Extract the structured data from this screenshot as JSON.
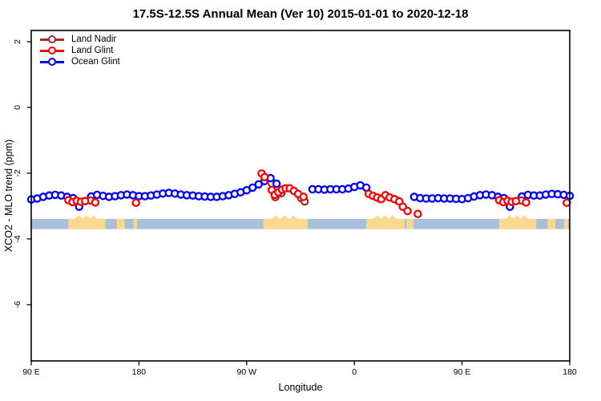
{
  "chart": {
    "title": "17.5S-12.5S Annual Mean (Ver 10)   2015-01-01 to 2020-12-18",
    "xlabel": "Longitude",
    "ylabel": "XCO2 - MLO trend (ppm)"
  },
  "chart_data": {
    "type": "scatter",
    "title": "17.5S-12.5S Annual Mean (Ver 10)   2015-01-01 to 2020-12-18",
    "xlabel": "Longitude",
    "ylabel": "XCO2 - MLO trend (ppm)",
    "x_axis": {
      "range": [
        90,
        540
      ],
      "note": "longitude axis wraps eastward: 90E -> 180 -> 90W -> 0 -> 90E -> 180",
      "ticks": [
        {
          "pos": 90,
          "label": "90 E"
        },
        {
          "pos": 180,
          "label": "180"
        },
        {
          "pos": 270,
          "label": "90 W"
        },
        {
          "pos": 360,
          "label": "0"
        },
        {
          "pos": 450,
          "label": "90 E"
        },
        {
          "pos": 540,
          "label": "180"
        }
      ]
    },
    "y_axis": {
      "range": [
        -7.71,
        2.34
      ],
      "ticks": [
        2,
        0,
        -2,
        -4,
        -6
      ],
      "grid": false
    },
    "legend_position": "top-left",
    "series": [
      {
        "name": "Land Nadir",
        "color": "#A52A2A",
        "clusters": [
          [
            [
              139.5,
              -2.83
            ]
          ],
          [
            [
              294.0,
              -2.73
            ],
            [
              299.0,
              -2.61
            ]
          ],
          [
            [
              315.5,
              -2.76
            ],
            [
              318.5,
              -2.86
            ]
          ],
          [
            [
              381.0,
              -2.77
            ]
          ],
          [
            [
              396.5,
              -2.84
            ]
          ],
          [
            [
              499.5,
              -2.83
            ]
          ]
        ]
      },
      {
        "name": "Land Glint",
        "color": "#FF0000",
        "clusters": [
          [
            [
              121.0,
              -2.82
            ],
            [
              124.5,
              -2.88
            ],
            [
              128.0,
              -2.84
            ],
            [
              131.5,
              -2.87
            ],
            [
              135.0,
              -2.85
            ]
          ],
          [
            [
              143.5,
              -2.89
            ]
          ],
          [
            [
              177.5,
              -2.9
            ]
          ],
          [
            [
              282.5,
              -2.01
            ],
            [
              285.0,
              -2.12
            ],
            [
              291.0,
              -2.51
            ],
            [
              293.5,
              -2.66
            ],
            [
              296.5,
              -2.58
            ],
            [
              299.5,
              -2.5
            ],
            [
              302.5,
              -2.46
            ],
            [
              306.0,
              -2.46
            ],
            [
              309.5,
              -2.54
            ],
            [
              313.0,
              -2.63
            ],
            [
              317.5,
              -2.72
            ]
          ],
          [
            [
              372.0,
              -2.63
            ],
            [
              375.5,
              -2.69
            ],
            [
              379.0,
              -2.74
            ],
            [
              382.5,
              -2.79
            ],
            [
              386.0,
              -2.67
            ],
            [
              389.5,
              -2.74
            ],
            [
              393.5,
              -2.79
            ],
            [
              397.5,
              -2.86
            ],
            [
              400.5,
              -3.02
            ],
            [
              404.5,
              -3.15
            ]
          ],
          [
            [
              413.0,
              -3.24
            ]
          ],
          [
            [
              481.0,
              -2.82
            ],
            [
              484.5,
              -2.88
            ],
            [
              488.0,
              -2.84
            ],
            [
              491.5,
              -2.87
            ],
            [
              495.0,
              -2.85
            ]
          ],
          [
            [
              503.5,
              -2.89
            ]
          ],
          [
            [
              537.5,
              -2.9
            ]
          ]
        ]
      },
      {
        "name": "Ocean Glint",
        "color": "#0000FF",
        "clusters": [
          [
            [
              90,
              -2.8
            ],
            [
              95,
              -2.77
            ],
            [
              100,
              -2.72
            ],
            [
              105,
              -2.68
            ],
            [
              110,
              -2.66
            ],
            [
              115,
              -2.68
            ],
            [
              120,
              -2.72
            ],
            [
              125,
              -2.76
            ],
            [
              130,
              -3.02
            ],
            [
              135,
              -2.85
            ],
            [
              140,
              -2.71
            ],
            [
              145,
              -2.66
            ],
            [
              150,
              -2.69
            ],
            [
              155,
              -2.72
            ],
            [
              160,
              -2.7
            ],
            [
              165,
              -2.67
            ],
            [
              170,
              -2.65
            ],
            [
              175,
              -2.67
            ],
            [
              180,
              -2.7
            ],
            [
              185,
              -2.7
            ],
            [
              190,
              -2.68
            ],
            [
              195,
              -2.65
            ],
            [
              200,
              -2.62
            ],
            [
              205,
              -2.6
            ],
            [
              210,
              -2.62
            ],
            [
              215,
              -2.65
            ],
            [
              220,
              -2.67
            ],
            [
              225,
              -2.68
            ],
            [
              230,
              -2.7
            ],
            [
              235,
              -2.71
            ],
            [
              240,
              -2.72
            ],
            [
              245,
              -2.72
            ],
            [
              250,
              -2.7
            ],
            [
              255,
              -2.67
            ],
            [
              260,
              -2.63
            ],
            [
              265,
              -2.58
            ],
            [
              270,
              -2.52
            ],
            [
              275,
              -2.44
            ],
            [
              280,
              -2.34
            ],
            [
              285,
              -2.24
            ],
            [
              290,
              -2.15
            ],
            [
              295,
              -2.32
            ]
          ],
          [
            [
              325,
              -2.49
            ],
            [
              330,
              -2.49
            ],
            [
              335,
              -2.5
            ],
            [
              340,
              -2.49
            ],
            [
              345,
              -2.49
            ],
            [
              350,
              -2.49
            ],
            [
              355,
              -2.47
            ],
            [
              360,
              -2.42
            ],
            [
              365,
              -2.37
            ],
            [
              370,
              -2.44
            ]
          ],
          [
            [
              410,
              -2.72
            ],
            [
              415,
              -2.76
            ],
            [
              420,
              -2.77
            ],
            [
              425,
              -2.77
            ],
            [
              430,
              -2.76
            ],
            [
              435,
              -2.77
            ],
            [
              440,
              -2.77
            ],
            [
              445,
              -2.78
            ],
            [
              450,
              -2.79
            ],
            [
              455,
              -2.76
            ],
            [
              460,
              -2.71
            ],
            [
              465,
              -2.67
            ],
            [
              470,
              -2.65
            ],
            [
              475,
              -2.67
            ],
            [
              480,
              -2.72
            ],
            [
              485,
              -2.76
            ],
            [
              490,
              -3.02
            ],
            [
              495,
              -2.85
            ],
            [
              500,
              -2.71
            ],
            [
              505,
              -2.66
            ],
            [
              510,
              -2.68
            ],
            [
              515,
              -2.68
            ],
            [
              520,
              -2.65
            ],
            [
              525,
              -2.63
            ],
            [
              530,
              -2.64
            ],
            [
              535,
              -2.66
            ],
            [
              540,
              -2.69
            ]
          ]
        ]
      }
    ],
    "map_band": {
      "description": "latitude-band strip: ocean vs land along 17.5S-12.5S",
      "ocean_color": "#A9BFDB",
      "land_color": "#FAD98F",
      "y_top": -3.39,
      "y_bottom": -3.7,
      "land_segments": [
        [
          121,
          152
        ],
        [
          161.5,
          168
        ],
        [
          175.5,
          178.5
        ],
        [
          284,
          321
        ],
        [
          370,
          402
        ],
        [
          403.5,
          409.5
        ],
        [
          481,
          512
        ],
        [
          521.5,
          528
        ],
        [
          535.5,
          538.5
        ]
      ]
    },
    "axis_color": "#000000"
  }
}
